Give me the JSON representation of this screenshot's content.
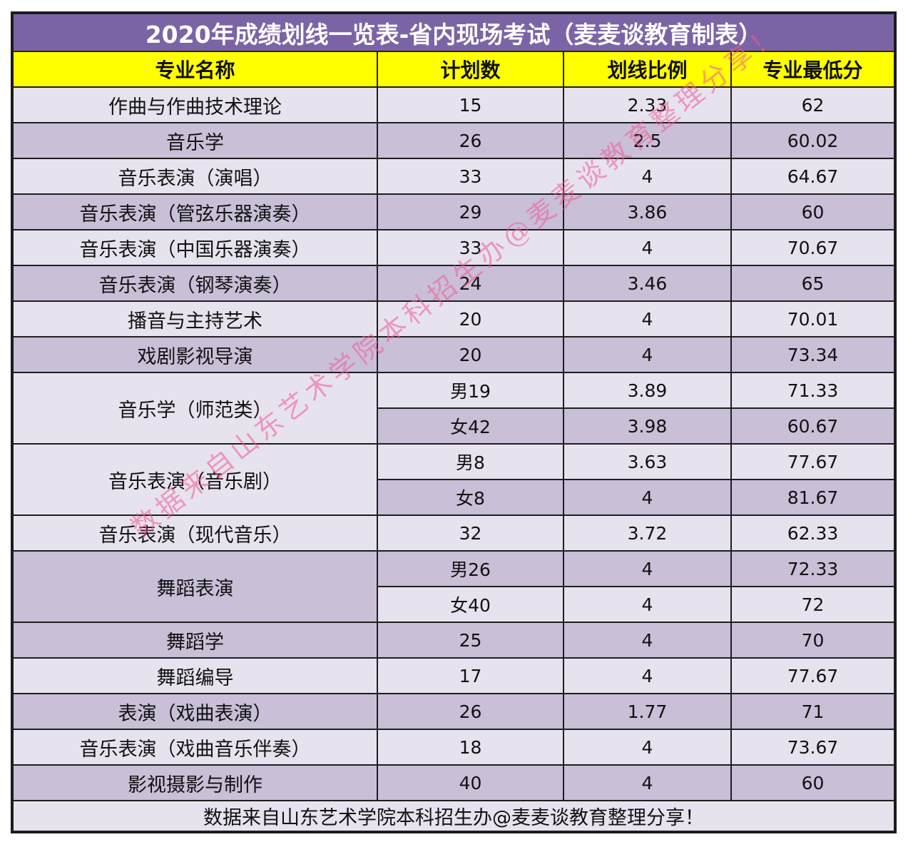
{
  "title": "2020年成绩划线一览表-省内现场考试（麦麦谈教育制表）",
  "columns": [
    "专业名称",
    "计划数",
    "划线比例",
    "专业最低分"
  ],
  "rows": [
    {
      "major": "作曲与作曲技术理论",
      "plan": "15",
      "ratio": "2.33",
      "min_score": "62"
    },
    {
      "major": "音乐学",
      "plan": "26",
      "ratio": "2.5",
      "min_score": "60.02"
    },
    {
      "major": "音乐表演（演唱）",
      "plan": "33",
      "ratio": "4",
      "min_score": "64.67"
    },
    {
      "major": "音乐表演（管弦乐器演奏）",
      "plan": "29",
      "ratio": "3.86",
      "min_score": "60"
    },
    {
      "major": "音乐表演（中国乐器演奏）",
      "plan": "33",
      "ratio": "4",
      "min_score": "70.67"
    },
    {
      "major": "音乐表演（钢琴演奏）",
      "plan": "24",
      "ratio": "3.46",
      "min_score": "65"
    },
    {
      "major": "播音与主持艺术",
      "plan": "20",
      "ratio": "4",
      "min_score": "70.01"
    },
    {
      "major": "戏剧影视导演",
      "plan": "20",
      "ratio": "4",
      "min_score": "73.34"
    },
    {
      "major": "音乐学（师范类）",
      "sub": [
        {
          "plan": "男19",
          "ratio": "3.89",
          "min_score": "71.33"
        },
        {
          "plan": "女42",
          "ratio": "3.98",
          "min_score": "60.67"
        }
      ]
    },
    {
      "major": "音乐表演（音乐剧）",
      "sub": [
        {
          "plan": "男8",
          "ratio": "3.63",
          "min_score": "77.67"
        },
        {
          "plan": "女8",
          "ratio": "4",
          "min_score": "81.67"
        }
      ]
    },
    {
      "major": "音乐表演（现代音乐）",
      "plan": "32",
      "ratio": "3.72",
      "min_score": "62.33"
    },
    {
      "major": "舞蹈表演",
      "sub": [
        {
          "plan": "男26",
          "ratio": "4",
          "min_score": "72.33"
        },
        {
          "plan": "女40",
          "ratio": "4",
          "min_score": "72"
        }
      ]
    },
    {
      "major": "舞蹈学",
      "plan": "25",
      "ratio": "4",
      "min_score": "70"
    },
    {
      "major": "舞蹈编导",
      "plan": "17",
      "ratio": "4",
      "min_score": "77.67"
    },
    {
      "major": "表演（戏曲表演）",
      "plan": "26",
      "ratio": "1.77",
      "min_score": "71"
    },
    {
      "major": "音乐表演（戏曲音乐伴奏）",
      "plan": "18",
      "ratio": "4",
      "min_score": "73.67"
    },
    {
      "major": "影视摄影与制作",
      "plan": "40",
      "ratio": "4",
      "min_score": "60"
    }
  ],
  "footer": "数据来自山东艺术学院本科招生办@麦麦谈教育整理分享！",
  "watermark": "数据来自山东艺术学院本科招生办@麦麦谈教育整理分享！",
  "colors": {
    "title_bg": "#7b64a6",
    "header_bg": "#ffff00",
    "row_light": "#e7e3ee",
    "row_dark": "#c9bfd7",
    "watermark": "#ee5a96"
  }
}
